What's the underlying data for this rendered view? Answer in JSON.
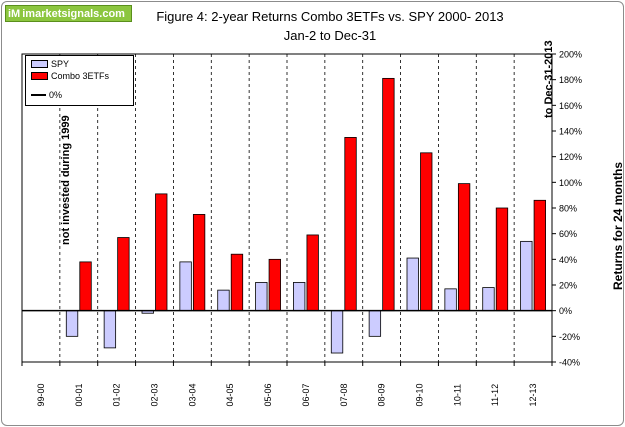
{
  "logo": {
    "mark": "iM",
    "text": "imarketsignals.com"
  },
  "chart_data": {
    "type": "bar",
    "title": "Figure 4:  2-year Returns Combo 3ETFs  vs. SPY  2000- 2013",
    "subtitle": "Jan-2 to Dec-31",
    "xlabel": "",
    "ylabel": "Returns for 24 months",
    "categories": [
      "99-00",
      "00-01",
      "01-02",
      "02-03",
      "03-04",
      "04-05",
      "05-06",
      "06-07",
      "07-08",
      "08-09",
      "09-10",
      "10-11",
      "11-12",
      "12-13"
    ],
    "series": [
      {
        "name": "SPY",
        "color": "#ccccff",
        "values": [
          null,
          -20,
          -29,
          -2,
          38,
          16,
          22,
          22,
          -33,
          -20,
          41,
          17,
          18,
          54
        ]
      },
      {
        "name": "Combo 3ETFs",
        "color": "#ff0000",
        "values": [
          null,
          38,
          57,
          91,
          75,
          44,
          40,
          59,
          135,
          181,
          123,
          99,
          80,
          86
        ]
      },
      {
        "name": "0%",
        "color": "#000000",
        "values": [
          0,
          0,
          0,
          0,
          0,
          0,
          0,
          0,
          0,
          0,
          0,
          0,
          0,
          0
        ]
      }
    ],
    "ylim": [
      -40,
      200
    ],
    "yticks": [
      -40,
      -20,
      0,
      20,
      40,
      60,
      80,
      100,
      120,
      140,
      160,
      180,
      200
    ],
    "ytick_labels": [
      "-40%",
      "-20%",
      "0%",
      "20%",
      "40%",
      "60%",
      "80%",
      "100%",
      "120%",
      "140%",
      "160%",
      "180%",
      "200%"
    ],
    "grid": "vertical-dashed",
    "legend_position": "top-left",
    "annotations": [
      "not invested during 1999",
      "to Dec-31-2013"
    ]
  }
}
